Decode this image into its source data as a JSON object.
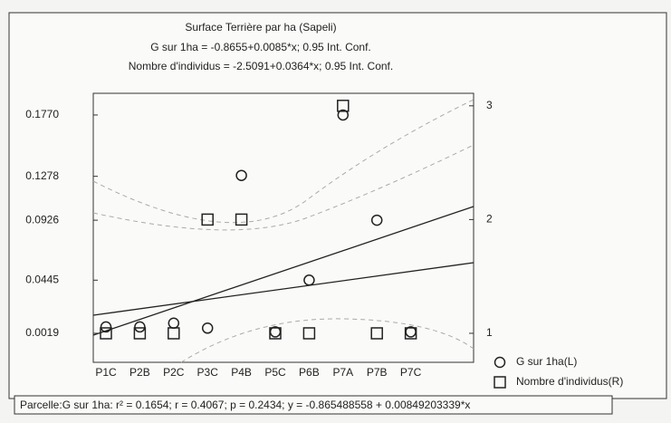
{
  "chart_data": {
    "type": "scatter",
    "title": "Surface Terrière par ha (Sapeli)",
    "subtitle": [
      "G sur 1ha = -0.8655+0.0085*x; 0.95 Int. Conf.",
      "Nombre d'individus = -2.5091+0.0364*x; 0.95 Int. Conf."
    ],
    "categories": [
      "P1C",
      "P2B",
      "P2C",
      "P3C",
      "P4B",
      "P5C",
      "P6B",
      "P7A",
      "P7B",
      "P7C"
    ],
    "series": [
      {
        "name": "G sur 1ha(L)",
        "color": "#222222",
        "marker": "circle",
        "values": [
          0.007,
          0.007,
          0.01,
          0.006,
          0.1285,
          0.003,
          0.0445,
          0.177,
          0.0926,
          0.003
        ]
      },
      {
        "name": "Nombre d'individus(R)",
        "color": "#222222",
        "marker": "square",
        "axis": "y2",
        "values": [
          1,
          1,
          1,
          2,
          2,
          1,
          1,
          3,
          1,
          1
        ]
      }
    ],
    "ylim": [
      -0.0214,
      0.1944
    ],
    "yticks": [
      0.0019,
      0.0445,
      0.0926,
      0.1278,
      {
        "value": 0.177,
        "label": "0.1770"
      }
    ],
    "y2lim": [
      0.745,
      3.11
    ],
    "y2ticks": [
      1,
      2,
      3
    ],
    "stats_note": "Parcelle:G sur 1ha:  r² = 0.1654;  r = 0.4067;  p = 0.2434;  y = -0.865488558 + 0.00849203339*x"
  }
}
